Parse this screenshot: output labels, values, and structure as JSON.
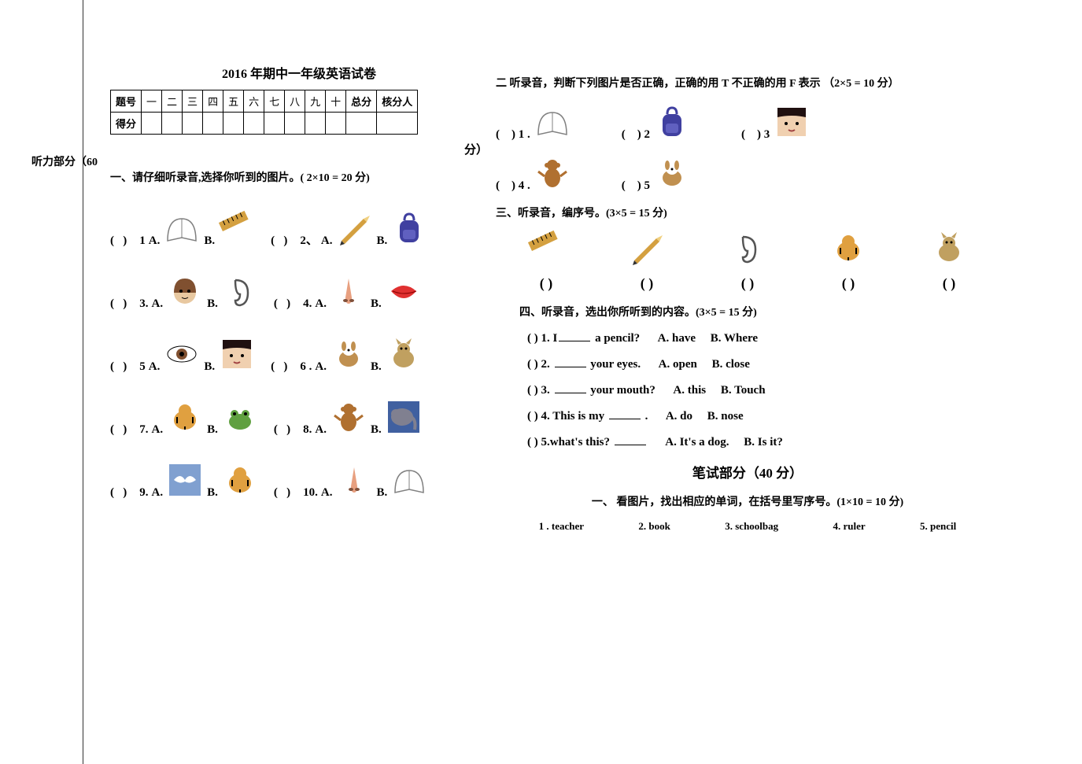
{
  "title": "2016 年期中一年级英语试卷",
  "table": {
    "row1_label": "题号",
    "cols": [
      "一",
      "二",
      "三",
      "四",
      "五",
      "六",
      "七",
      "八",
      "九",
      "十",
      "总分",
      "核分人"
    ],
    "row2_label": "得分"
  },
  "listening_header_left": "听力部分（60",
  "listening_header_right": "分）",
  "section1": {
    "title": "一、请仔细听录音,选择你听到的图片。( 2×10 = 20 分)",
    "items": [
      {
        "n": "1",
        "a": "book",
        "b": "ruler"
      },
      {
        "n": "2、",
        "a": "pencil",
        "b": "schoolbag"
      },
      {
        "n": "3.",
        "a": "face",
        "b": "ear"
      },
      {
        "n": "4.",
        "a": "nose",
        "b": "mouth"
      },
      {
        "n": "5",
        "a": "eye",
        "b": "girl-face"
      },
      {
        "n": "6 .",
        "a": "dog",
        "b": "cat"
      },
      {
        "n": "7.",
        "a": "tiger",
        "b": "frog"
      },
      {
        "n": "8.",
        "a": "monkey",
        "b": "elephant"
      },
      {
        "n": "9.",
        "a": "bird",
        "b": "tiger"
      },
      {
        "n": "10.",
        "a": "nose",
        "b": "book"
      }
    ]
  },
  "section2": {
    "title": "二  听录音，判断下列图片是否正确，正确的用 T 不正确的用 F 表示  （2×5 = 10 分）",
    "items": [
      {
        "n": "1 .",
        "icon": "book"
      },
      {
        "n": "2",
        "icon": "schoolbag"
      },
      {
        "n": "3",
        "icon": "girl-face"
      },
      {
        "n": "4 .",
        "icon": "monkey"
      },
      {
        "n": "5",
        "icon": "dog"
      }
    ]
  },
  "section3": {
    "title": "三、听录音，编序号。(3×5 = 15 分)",
    "icons": [
      "ruler",
      "pencil",
      "ear",
      "tiger",
      "cat"
    ],
    "paren": "(     )"
  },
  "section4": {
    "title": "四、听录音，选出你所听到的内容。(3×5 = 15 分)",
    "lines": [
      {
        "p": "(       ) 1. I",
        "blank": true,
        "rest": " a pencil?",
        "a": "A. have",
        "b": "B. Where"
      },
      {
        "p": "(       ) 2.   ",
        "blank": true,
        "rest": " your eyes.",
        "a": "A. open",
        "b": "B. close"
      },
      {
        "p": "(       ) 3. ",
        "blank": true,
        "rest": " your mouth?",
        "a": "A. this",
        "b": "B. Touch"
      },
      {
        "p": "(       ) 4. This is my ",
        "blank": true,
        "rest": " .",
        "a": "A. do",
        "b": "B. nose"
      },
      {
        "p": "(       ) 5.what's this? ",
        "blank": true,
        "rest": "",
        "a": "A. It's a dog.",
        "b": "B. Is it?"
      }
    ]
  },
  "written_header": "笔试部分（40 分）",
  "section5": {
    "title": "一、 看图片，找出相应的单词，在括号里写序号。(1×10 = 10 分)",
    "words": [
      "1 . teacher",
      "2. book",
      "3. schoolbag",
      "4. ruler",
      "5. pencil"
    ]
  },
  "colors": {
    "book": "#808080",
    "ruler": "#d4a040",
    "pencil": "#d4a040",
    "schoolbag": "#4040a0",
    "face": "#e8c8a0",
    "ear": "#555",
    "nose": "#e8a080",
    "mouth": "#e03030",
    "eye": "#805030",
    "girl-face": "#e8c8a0",
    "dog": "#c09050",
    "cat": "#c0a060",
    "tiger": "#e0a040",
    "frog": "#60a040",
    "monkey": "#b07030",
    "elephant": "#5070a0",
    "bird": "#a0a0a0"
  }
}
